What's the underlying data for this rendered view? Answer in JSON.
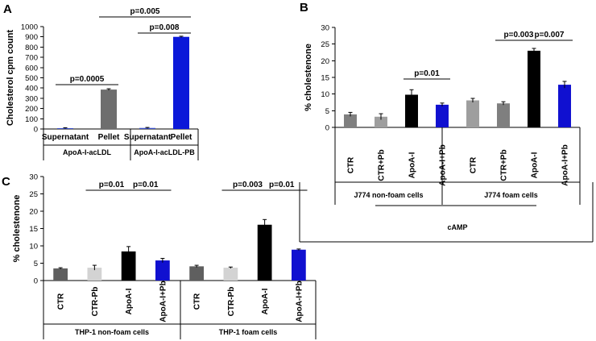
{
  "chart_data": [
    {
      "panel": "A",
      "type": "bar",
      "ylabel": "Cholesterol cpm count",
      "ylim": [
        0,
        1000
      ],
      "yticks": [
        0,
        100,
        200,
        300,
        400,
        500,
        600,
        700,
        800,
        900,
        1000
      ],
      "categories": [
        "Supernatant",
        "Pellet",
        "Supernatant",
        "Pellet"
      ],
      "values": [
        8,
        385,
        10,
        900
      ],
      "errors": [
        4,
        8,
        5,
        6
      ],
      "colors": [
        "#3a4fc9",
        "#6e6e6e",
        "#3a4fc9",
        "#0b18d9"
      ],
      "groups": [
        "ApoA-I-acLDL",
        "ApoA-I-acLDL-PB"
      ],
      "comparisons": [
        {
          "label": "p=0.0005",
          "from": 0,
          "to": 1
        },
        {
          "label": "p=0.008",
          "from": 2,
          "to": 3
        },
        {
          "label": "p=0.005",
          "from": 1,
          "to": 3
        }
      ]
    },
    {
      "panel": "B",
      "type": "bar",
      "ylabel": "% cholestenone",
      "ylim": [
        0,
        30
      ],
      "yticks": [
        0,
        5,
        10,
        15,
        20,
        25,
        30
      ],
      "categories": [
        "CTR",
        "CTR+Pb",
        "ApoA-I",
        "ApoA-I+Pb",
        "CTR",
        "CTR+Pb",
        "ApoA-I",
        "ApoA-I+Pb"
      ],
      "values": [
        3.9,
        3.2,
        9.8,
        6.8,
        8.1,
        7.2,
        23.0,
        12.8
      ],
      "errors": [
        0.6,
        0.9,
        1.5,
        0.5,
        0.6,
        0.5,
        0.7,
        1.0
      ],
      "colors": [
        "#7f7f7f",
        "#9e9e9e",
        "#000000",
        "#1010d0",
        "#9e9e9e",
        "#7f7f7f",
        "#000000",
        "#1010d0"
      ],
      "groups": [
        "J774 non-foam cells",
        "J774 foam cells"
      ],
      "xlabel": "cAMP",
      "comparisons": [
        {
          "label": "p=0.01",
          "from": 2,
          "to": 3
        },
        {
          "label": "p=0.003",
          "from": 5,
          "to": 6
        },
        {
          "label": "p=0.007",
          "from": 6,
          "to": 7
        }
      ]
    },
    {
      "panel": "C",
      "type": "bar",
      "ylabel": "% cholestenone",
      "ylim": [
        0,
        30
      ],
      "yticks": [
        0,
        5,
        10,
        15,
        20,
        25,
        30
      ],
      "categories": [
        "CTR",
        "CTR-Pb",
        "ApoA-I",
        "ApoA-I+Pb",
        "CTR",
        "CTR-Pb",
        "ApoA-I",
        "ApoA-I+Pb"
      ],
      "values": [
        3.5,
        3.7,
        8.4,
        5.8,
        4.1,
        3.7,
        16.1,
        8.9
      ],
      "errors": [
        0.2,
        0.7,
        1.4,
        0.6,
        0.3,
        0.2,
        1.5,
        0.2
      ],
      "colors": [
        "#5f5f5f",
        "#d3d3d3",
        "#000000",
        "#1010d0",
        "#5f5f5f",
        "#d3d3d3",
        "#000000",
        "#1010d0"
      ],
      "groups": [
        "THP-1 non-foam cells",
        "THP-1 foam cells"
      ],
      "comparisons": [
        {
          "label": "p=0.01",
          "from": 1,
          "to": 2
        },
        {
          "label": "p=0.01",
          "from": 2,
          "to": 3
        },
        {
          "label": "p=0.003",
          "from": 5,
          "to": 6
        },
        {
          "label": "p=0.01",
          "from": 6,
          "to": 7
        }
      ]
    }
  ]
}
